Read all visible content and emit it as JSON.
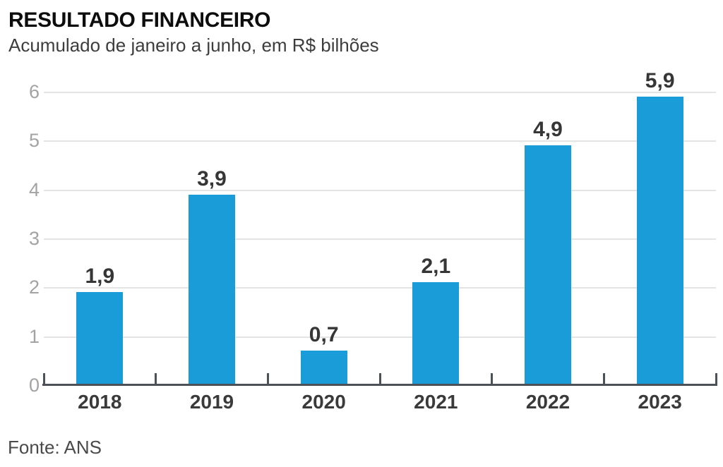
{
  "header": {
    "title": "RESULTADO FINANCEIRO",
    "subtitle": "Acumulado de janeiro a junho, em R$ bilhões"
  },
  "footer": {
    "source": "Fonte: ANS"
  },
  "chart_data": {
    "type": "bar",
    "title": "RESULTADO FINANCEIRO",
    "subtitle": "Acumulado de janeiro a junho, em R$ bilhões",
    "source": "Fonte: ANS",
    "categories": [
      "2018",
      "2019",
      "2020",
      "2021",
      "2022",
      "2023"
    ],
    "values": [
      1.9,
      3.9,
      0.7,
      2.1,
      4.9,
      5.9
    ],
    "value_labels": [
      "1,9",
      "3,9",
      "0,7",
      "2,1",
      "4,9",
      "5,9"
    ],
    "xlabel": "",
    "ylabel": "",
    "ylim": [
      0,
      6
    ],
    "yticks": [
      0,
      1,
      2,
      3,
      4,
      5,
      6
    ],
    "grid": true,
    "legend": "none",
    "colors": {
      "bar": "#1a9cd9",
      "grid": "#e4e4e4",
      "axis": "#4b5157",
      "tick": "#4b5157",
      "y_label": "#a3a3a6",
      "x_label": "#3a3a3a",
      "value_label": "#363636",
      "title": "#0d0d0d",
      "subtitle": "#3d3d3d",
      "source": "#4a4a4a"
    }
  }
}
